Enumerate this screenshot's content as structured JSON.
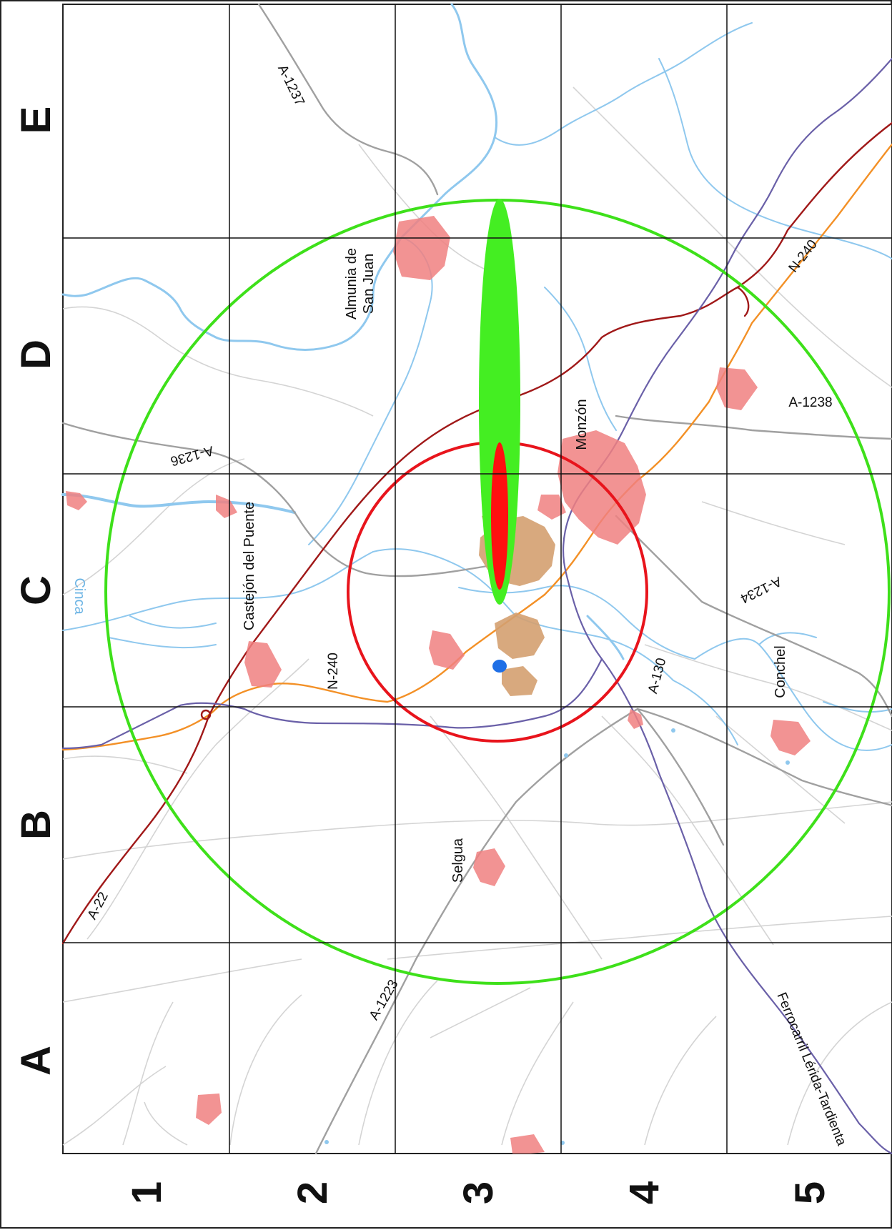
{
  "grid": {
    "columns": [
      "A",
      "B",
      "C",
      "D",
      "E"
    ],
    "rows": [
      "1",
      "2",
      "3",
      "4",
      "5"
    ]
  },
  "places": {
    "almunia": [
      "Almunia de",
      "San Juan"
    ],
    "castejon": "Castejón del Puente",
    "monzon": "Monzón",
    "selgua": "Selgua",
    "conchel": "Conchel",
    "cinca": "Cinca"
  },
  "roads": {
    "a1237": "A-1237",
    "a1236": "A-1236",
    "n240_west": "N-240",
    "n240_east": "N-240",
    "a1238": "A-1238",
    "a1234": "A-1234",
    "a130": "A-130",
    "a22": "A-22",
    "a1223": "A-1223",
    "railway": "Ferrocarril Lérida-Tardienta"
  },
  "colors": {
    "outer_zone": "#3ee01a",
    "inner_zone": "#e8141c",
    "plume_outer": "#44ee22",
    "plume_inner": "#ff1010",
    "river": "#8fc8ee",
    "motorway": "#a01818",
    "national_road": "#f39026",
    "railway": "#6a60a8",
    "secondary_road": "#a0a0a0",
    "urban": "#f08080",
    "industrial": "#d4a070"
  }
}
